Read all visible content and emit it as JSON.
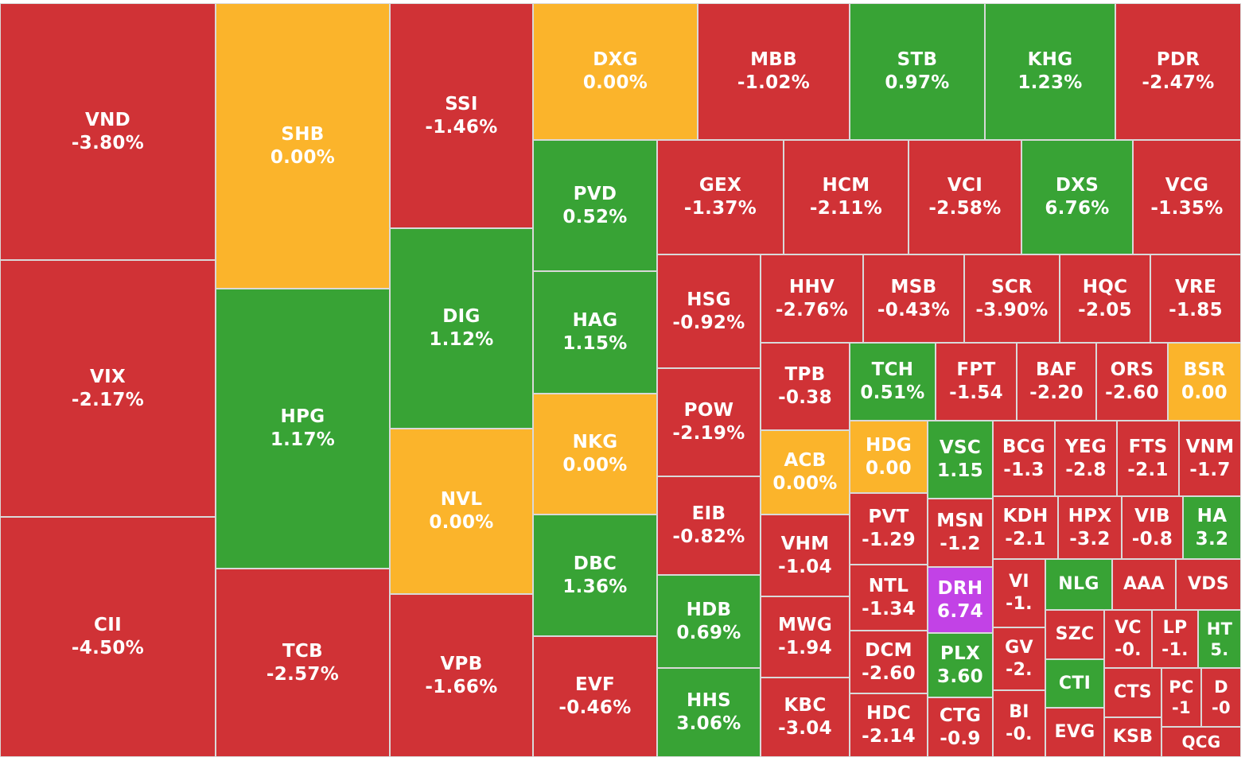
{
  "colors": {
    "down": "#d03236",
    "up": "#38a335",
    "flat": "#fbb42b",
    "ceiling": "#c242e6",
    "border": "#d9d9d9",
    "text": "#ffffff"
  },
  "chart_data": {
    "type": "treemap",
    "title": "",
    "tiles": [
      {
        "symbol": "VND",
        "label": "-3.80%",
        "change": -3.8,
        "status": "down"
      },
      {
        "symbol": "VIX",
        "label": "-2.17%",
        "change": -2.17,
        "status": "down"
      },
      {
        "symbol": "CII",
        "label": "-4.50%",
        "change": -4.5,
        "status": "down"
      },
      {
        "symbol": "SHB",
        "label": "0.00%",
        "change": 0.0,
        "status": "flat"
      },
      {
        "symbol": "HPG",
        "label": "1.17%",
        "change": 1.17,
        "status": "up"
      },
      {
        "symbol": "TCB",
        "label": "-2.57%",
        "change": -2.57,
        "status": "down"
      },
      {
        "symbol": "SSI",
        "label": "-1.46%",
        "change": -1.46,
        "status": "down"
      },
      {
        "symbol": "DIG",
        "label": "1.12%",
        "change": 1.12,
        "status": "up"
      },
      {
        "symbol": "NVL",
        "label": "0.00%",
        "change": 0.0,
        "status": "flat"
      },
      {
        "symbol": "VPB",
        "label": "-1.66%",
        "change": -1.66,
        "status": "down"
      },
      {
        "symbol": "DXG",
        "label": "0.00%",
        "change": 0.0,
        "status": "flat"
      },
      {
        "symbol": "MBB",
        "label": "-1.02%",
        "change": -1.02,
        "status": "down"
      },
      {
        "symbol": "STB",
        "label": "0.97%",
        "change": 0.97,
        "status": "up"
      },
      {
        "symbol": "KHG",
        "label": "1.23%",
        "change": 1.23,
        "status": "up"
      },
      {
        "symbol": "PDR",
        "label": "-2.47%",
        "change": -2.47,
        "status": "down"
      },
      {
        "symbol": "PVD",
        "label": "0.52%",
        "change": 0.52,
        "status": "up"
      },
      {
        "symbol": "HAG",
        "label": "1.15%",
        "change": 1.15,
        "status": "up"
      },
      {
        "symbol": "NKG",
        "label": "0.00%",
        "change": 0.0,
        "status": "flat"
      },
      {
        "symbol": "DBC",
        "label": "1.36%",
        "change": 1.36,
        "status": "up"
      },
      {
        "symbol": "EVF",
        "label": "-0.46%",
        "change": -0.46,
        "status": "down"
      },
      {
        "symbol": "GEX",
        "label": "-1.37%",
        "change": -1.37,
        "status": "down"
      },
      {
        "symbol": "HCM",
        "label": "-2.11%",
        "change": -2.11,
        "status": "down"
      },
      {
        "symbol": "VCI",
        "label": "-2.58%",
        "change": -2.58,
        "status": "down"
      },
      {
        "symbol": "DXS",
        "label": "6.76%",
        "change": 6.76,
        "status": "up"
      },
      {
        "symbol": "VCG",
        "label": "-1.35%",
        "change": -1.35,
        "status": "down"
      },
      {
        "symbol": "HSG",
        "label": "-0.92%",
        "change": -0.92,
        "status": "down"
      },
      {
        "symbol": "POW",
        "label": "-2.19%",
        "change": -2.19,
        "status": "down"
      },
      {
        "symbol": "EIB",
        "label": "-0.82%",
        "change": -0.82,
        "status": "down"
      },
      {
        "symbol": "HDB",
        "label": "0.69%",
        "change": 0.69,
        "status": "up"
      },
      {
        "symbol": "HHS",
        "label": "3.06%",
        "change": 3.06,
        "status": "up"
      },
      {
        "symbol": "HHV",
        "label": "-2.76%",
        "change": -2.76,
        "status": "down"
      },
      {
        "symbol": "MSB",
        "label": "-0.43%",
        "change": -0.43,
        "status": "down"
      },
      {
        "symbol": "SCR",
        "label": "-3.90%",
        "change": -3.9,
        "status": "down"
      },
      {
        "symbol": "HQC",
        "label": "-2.05",
        "change": -2.05,
        "status": "down"
      },
      {
        "symbol": "VRE",
        "label": "-1.85",
        "change": -1.85,
        "status": "down"
      },
      {
        "symbol": "TPB",
        "label": "-0.38",
        "change": -0.38,
        "status": "down"
      },
      {
        "symbol": "ACB",
        "label": "0.00%",
        "change": 0.0,
        "status": "flat"
      },
      {
        "symbol": "VHM",
        "label": "-1.04",
        "change": -1.04,
        "status": "down"
      },
      {
        "symbol": "MWG",
        "label": "-1.94",
        "change": -1.94,
        "status": "down"
      },
      {
        "symbol": "KBC",
        "label": "-3.04",
        "change": -3.04,
        "status": "down"
      },
      {
        "symbol": "TCH",
        "label": "0.51%",
        "change": 0.51,
        "status": "up"
      },
      {
        "symbol": "FPT",
        "label": "-1.54",
        "change": -1.54,
        "status": "down"
      },
      {
        "symbol": "BAF",
        "label": "-2.20",
        "change": -2.2,
        "status": "down"
      },
      {
        "symbol": "ORS",
        "label": "-2.60",
        "change": -2.6,
        "status": "down"
      },
      {
        "symbol": "BSR",
        "label": "0.00",
        "change": 0.0,
        "status": "flat"
      },
      {
        "symbol": "HDG",
        "label": "0.00",
        "change": 0.0,
        "status": "flat"
      },
      {
        "symbol": "VSC",
        "label": "1.15",
        "change": 1.15,
        "status": "up"
      },
      {
        "symbol": "BCG",
        "label": "-1.3",
        "change": -1.3,
        "status": "down"
      },
      {
        "symbol": "YEG",
        "label": "-2.8",
        "change": -2.8,
        "status": "down"
      },
      {
        "symbol": "FTS",
        "label": "-2.1",
        "change": -2.1,
        "status": "down"
      },
      {
        "symbol": "VNM",
        "label": "-1.7",
        "change": -1.7,
        "status": "down"
      },
      {
        "symbol": "PVT",
        "label": "-1.29",
        "change": -1.29,
        "status": "down"
      },
      {
        "symbol": "MSN",
        "label": "-1.2",
        "change": -1.2,
        "status": "down"
      },
      {
        "symbol": "KDH",
        "label": "-2.1",
        "change": -2.1,
        "status": "down"
      },
      {
        "symbol": "HPX",
        "label": "-3.2",
        "change": -3.2,
        "status": "down"
      },
      {
        "symbol": "VIB",
        "label": "-0.8",
        "change": -0.8,
        "status": "down"
      },
      {
        "symbol": "HA",
        "label": "3.2",
        "change": 3.2,
        "status": "up"
      },
      {
        "symbol": "NTL",
        "label": "-1.34",
        "change": -1.34,
        "status": "down"
      },
      {
        "symbol": "DRH",
        "label": "6.74",
        "change": 6.74,
        "status": "ceiling"
      },
      {
        "symbol": "VI",
        "label": "-1.",
        "change": -1.0,
        "status": "down"
      },
      {
        "symbol": "NLG",
        "label": "",
        "change": null,
        "status": "up"
      },
      {
        "symbol": "AAA",
        "label": "",
        "change": null,
        "status": "down"
      },
      {
        "symbol": "VDS",
        "label": "",
        "change": null,
        "status": "down"
      },
      {
        "symbol": "DCM",
        "label": "-2.60",
        "change": -2.6,
        "status": "down"
      },
      {
        "symbol": "PLX",
        "label": "3.60",
        "change": 3.6,
        "status": "up"
      },
      {
        "symbol": "GV",
        "label": "-2.",
        "change": -2.0,
        "status": "down"
      },
      {
        "symbol": "SZC",
        "label": "",
        "change": null,
        "status": "down"
      },
      {
        "symbol": "VC",
        "label": "-0.",
        "change": -0.0,
        "status": "down"
      },
      {
        "symbol": "LP",
        "label": "-1.",
        "change": -1.0,
        "status": "down"
      },
      {
        "symbol": "HT",
        "label": "5.",
        "change": 5.0,
        "status": "up"
      },
      {
        "symbol": "HDC",
        "label": "-2.14",
        "change": -2.14,
        "status": "down"
      },
      {
        "symbol": "CTG",
        "label": "-0.9",
        "change": -0.9,
        "status": "down"
      },
      {
        "symbol": "BI",
        "label": "-0.",
        "change": -0.0,
        "status": "down"
      },
      {
        "symbol": "CTI",
        "label": "",
        "change": null,
        "status": "up"
      },
      {
        "symbol": "CTS",
        "label": "",
        "change": null,
        "status": "down"
      },
      {
        "symbol": "PC",
        "label": "-1",
        "change": -1,
        "status": "down"
      },
      {
        "symbol": "D",
        "label": "-0",
        "change": 0,
        "status": "down"
      },
      {
        "symbol": "EVG",
        "label": "",
        "change": null,
        "status": "down"
      },
      {
        "symbol": "KSB",
        "label": "",
        "change": null,
        "status": "down"
      },
      {
        "symbol": "QCG",
        "label": "",
        "change": null,
        "status": "down"
      }
    ]
  }
}
